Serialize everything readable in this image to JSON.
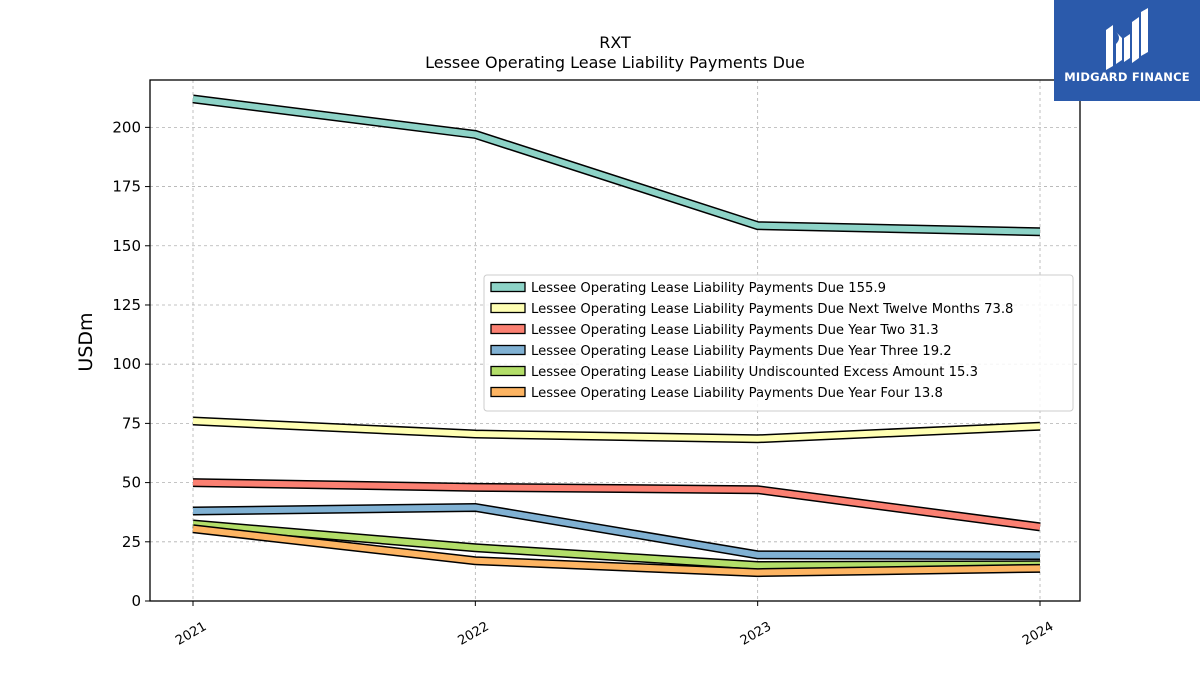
{
  "logo": {
    "text": "MIDGARD FINANCE",
    "colors": {
      "background": "#2b5aab",
      "mark": "#ffffff"
    }
  },
  "chart_data": {
    "type": "line",
    "title": "RXT",
    "subtitle": "Lessee Operating Lease Liability Payments Due",
    "xlabel": "",
    "ylabel": "USDm",
    "categories": [
      "2021",
      "2022",
      "2023",
      "2024"
    ],
    "ylim": [
      0,
      220
    ],
    "yticks": [
      0,
      25,
      50,
      75,
      100,
      125,
      150,
      175,
      200
    ],
    "grid": true,
    "legend_position": "center-right",
    "series": [
      {
        "name": "Lessee Operating Lease Liability Payments Due",
        "legend_value": "155.9",
        "color": "#8dd3c7",
        "values": [
          212.0,
          197.0,
          158.5,
          155.9
        ]
      },
      {
        "name": "Lessee Operating Lease Liability Payments Due Next Twelve Months",
        "legend_value": "73.8",
        "color": "#ffffb3",
        "values": [
          76.0,
          70.5,
          68.5,
          73.8
        ]
      },
      {
        "name": "Lessee Operating Lease Liability Payments Due Year Two",
        "legend_value": "31.3",
        "color": "#fb8072",
        "values": [
          50.0,
          48.0,
          47.0,
          31.3
        ]
      },
      {
        "name": "Lessee Operating Lease Liability Payments Due Year Three",
        "legend_value": "19.2",
        "color": "#80b1d3",
        "values": [
          38.0,
          39.5,
          19.5,
          19.2
        ]
      },
      {
        "name": "Lessee Operating Lease Liability Undiscounted Excess Amount",
        "legend_value": "15.3",
        "color": "#b3de69",
        "values": [
          32.5,
          22.5,
          15.0,
          15.3
        ]
      },
      {
        "name": "Lessee Operating Lease Liability Payments Due Year Four",
        "legend_value": "13.8",
        "color": "#fdb462",
        "values": [
          30.5,
          17.0,
          12.0,
          13.8
        ]
      }
    ]
  }
}
